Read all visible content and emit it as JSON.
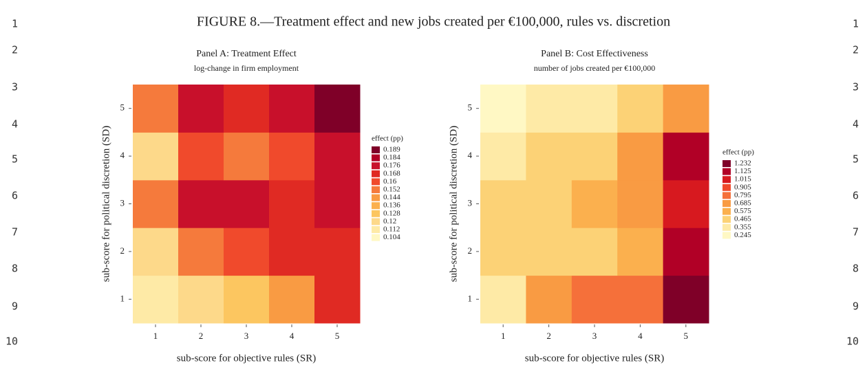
{
  "line_numbers": [
    1,
    2,
    3,
    4,
    5,
    6,
    7,
    8,
    9,
    10
  ],
  "caption": "FIGURE 8.—Treatment effect and new jobs created per €100,000, rules vs. discretion",
  "chart_data": [
    {
      "type": "heatmap",
      "title": "Panel A: Treatment Effect",
      "subtitle": "log-change in firm employment",
      "x_label": "sub-score for objective rules (SR)",
      "y_label": "sub-score for political discretion (SD)",
      "x": [
        1,
        2,
        3,
        4,
        5
      ],
      "y": [
        1,
        2,
        3,
        4,
        5
      ],
      "xlim": [
        0.5,
        5.5
      ],
      "ylim": [
        0.5,
        5.5
      ],
      "xticks": [
        1,
        2,
        3,
        4,
        5
      ],
      "yticks": [
        1,
        2,
        3,
        4,
        5
      ],
      "z": [
        [
          0.112,
          0.12,
          0.128,
          0.144,
          0.168
        ],
        [
          0.12,
          0.152,
          0.16,
          0.168,
          0.168
        ],
        [
          0.152,
          0.176,
          0.176,
          0.168,
          0.176
        ],
        [
          0.12,
          0.16,
          0.152,
          0.16,
          0.176
        ],
        [
          0.152,
          0.176,
          0.168,
          0.176,
          0.189
        ]
      ],
      "legend_title": "effect (pp)",
      "levels": [
        0.189,
        0.184,
        0.176,
        0.168,
        0.16,
        0.152,
        0.144,
        0.136,
        0.128,
        0.12,
        0.112,
        0.104
      ],
      "colors": [
        "#7f0028",
        "#b10026",
        "#c8102b",
        "#e02a23",
        "#f04a2c",
        "#f57a3c",
        "#f99b43",
        "#fbb04e",
        "#fcc660",
        "#fdd98a",
        "#feeaa6",
        "#fff8c4"
      ]
    },
    {
      "type": "heatmap",
      "title": "Panel B: Cost Effectiveness",
      "subtitle": "number of jobs created per €100,000",
      "x_label": "sub-score for objective rules (SR)",
      "y_label": "sub-score for political discretion (SD)",
      "x": [
        1,
        2,
        3,
        4,
        5
      ],
      "y": [
        1,
        2,
        3,
        4,
        5
      ],
      "xlim": [
        0.5,
        5.5
      ],
      "ylim": [
        0.5,
        5.5
      ],
      "xticks": [
        1,
        2,
        3,
        4,
        5
      ],
      "yticks": [
        1,
        2,
        3,
        4,
        5
      ],
      "z": [
        [
          0.355,
          0.685,
          0.795,
          0.795,
          1.232
        ],
        [
          0.465,
          0.465,
          0.465,
          0.575,
          1.125
        ],
        [
          0.465,
          0.465,
          0.575,
          0.685,
          1.015
        ],
        [
          0.355,
          0.465,
          0.465,
          0.685,
          1.125
        ],
        [
          0.245,
          0.355,
          0.355,
          0.465,
          0.685
        ]
      ],
      "legend_title": "effect (pp)",
      "levels": [
        1.232,
        1.125,
        1.015,
        0.905,
        0.795,
        0.685,
        0.575,
        0.465,
        0.355,
        0.245
      ],
      "colors": [
        "#7f0028",
        "#b10026",
        "#d7191f",
        "#f04a2c",
        "#f5703a",
        "#f99b43",
        "#fbb04e",
        "#fcd276",
        "#feeaa6",
        "#fff8c4"
      ]
    }
  ]
}
